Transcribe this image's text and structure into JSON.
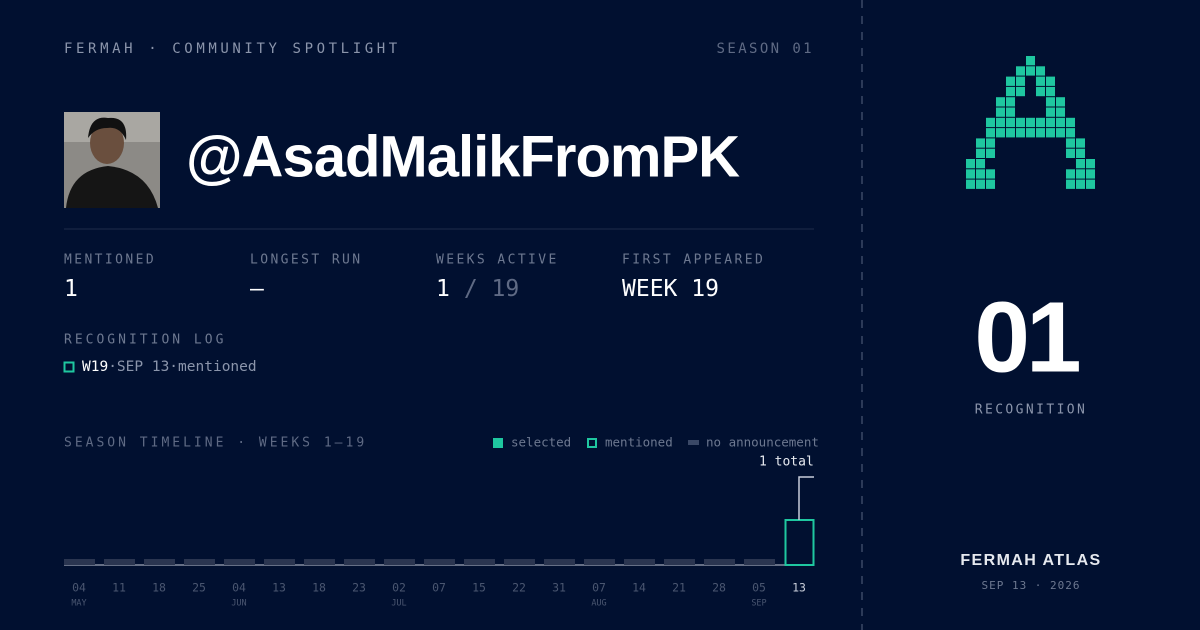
{
  "header": {
    "brand": "FERMAH · COMMUNITY SPOTLIGHT",
    "season": "SEASON 01"
  },
  "profile": {
    "handle": "@AsadMalikFromPK"
  },
  "stats": [
    {
      "label": "MENTIONED",
      "value": "1"
    },
    {
      "label": "LONGEST RUN",
      "value": "—"
    },
    {
      "label": "WEEKS ACTIVE",
      "value": "1",
      "suffix": "/ 19"
    },
    {
      "label": "FIRST APPEARED",
      "value": "WEEK 19"
    }
  ],
  "log": {
    "title": "RECOGNITION LOG",
    "entries": [
      {
        "week": "W19",
        "date": "·SEP 13·",
        "status": "mentioned"
      }
    ]
  },
  "timeline": {
    "title": "SEASON TIMELINE · WEEKS 1–19",
    "legend": [
      {
        "label": "selected",
        "state": "selected"
      },
      {
        "label": "mentioned",
        "state": "mentioned"
      },
      {
        "label": "no announcement",
        "state": "none"
      }
    ],
    "total_label": "1 total",
    "weeks": [
      {
        "day": "04",
        "month": "MAY",
        "state": "none"
      },
      {
        "day": "11",
        "month": null,
        "state": "none"
      },
      {
        "day": "18",
        "month": null,
        "state": "none"
      },
      {
        "day": "25",
        "month": null,
        "state": "none"
      },
      {
        "day": "04",
        "month": "JUN",
        "state": "none"
      },
      {
        "day": "13",
        "month": null,
        "state": "none"
      },
      {
        "day": "18",
        "month": null,
        "state": "none"
      },
      {
        "day": "23",
        "month": null,
        "state": "none"
      },
      {
        "day": "02",
        "month": "JUL",
        "state": "none"
      },
      {
        "day": "07",
        "month": null,
        "state": "none"
      },
      {
        "day": "15",
        "month": null,
        "state": "none"
      },
      {
        "day": "22",
        "month": null,
        "state": "none"
      },
      {
        "day": "31",
        "month": null,
        "state": "none"
      },
      {
        "day": "07",
        "month": "AUG",
        "state": "none"
      },
      {
        "day": "14",
        "month": null,
        "state": "none"
      },
      {
        "day": "21",
        "month": null,
        "state": "none"
      },
      {
        "day": "28",
        "month": null,
        "state": "none"
      },
      {
        "day": "05",
        "month": "SEP",
        "state": "none"
      },
      {
        "day": "13",
        "month": null,
        "state": "mentioned"
      }
    ]
  },
  "sidebar": {
    "count": "01",
    "count_label": "RECOGNITION",
    "footer_title": "FERMAH ATLAS",
    "footer_date": "SEP 13 · 2026"
  }
}
